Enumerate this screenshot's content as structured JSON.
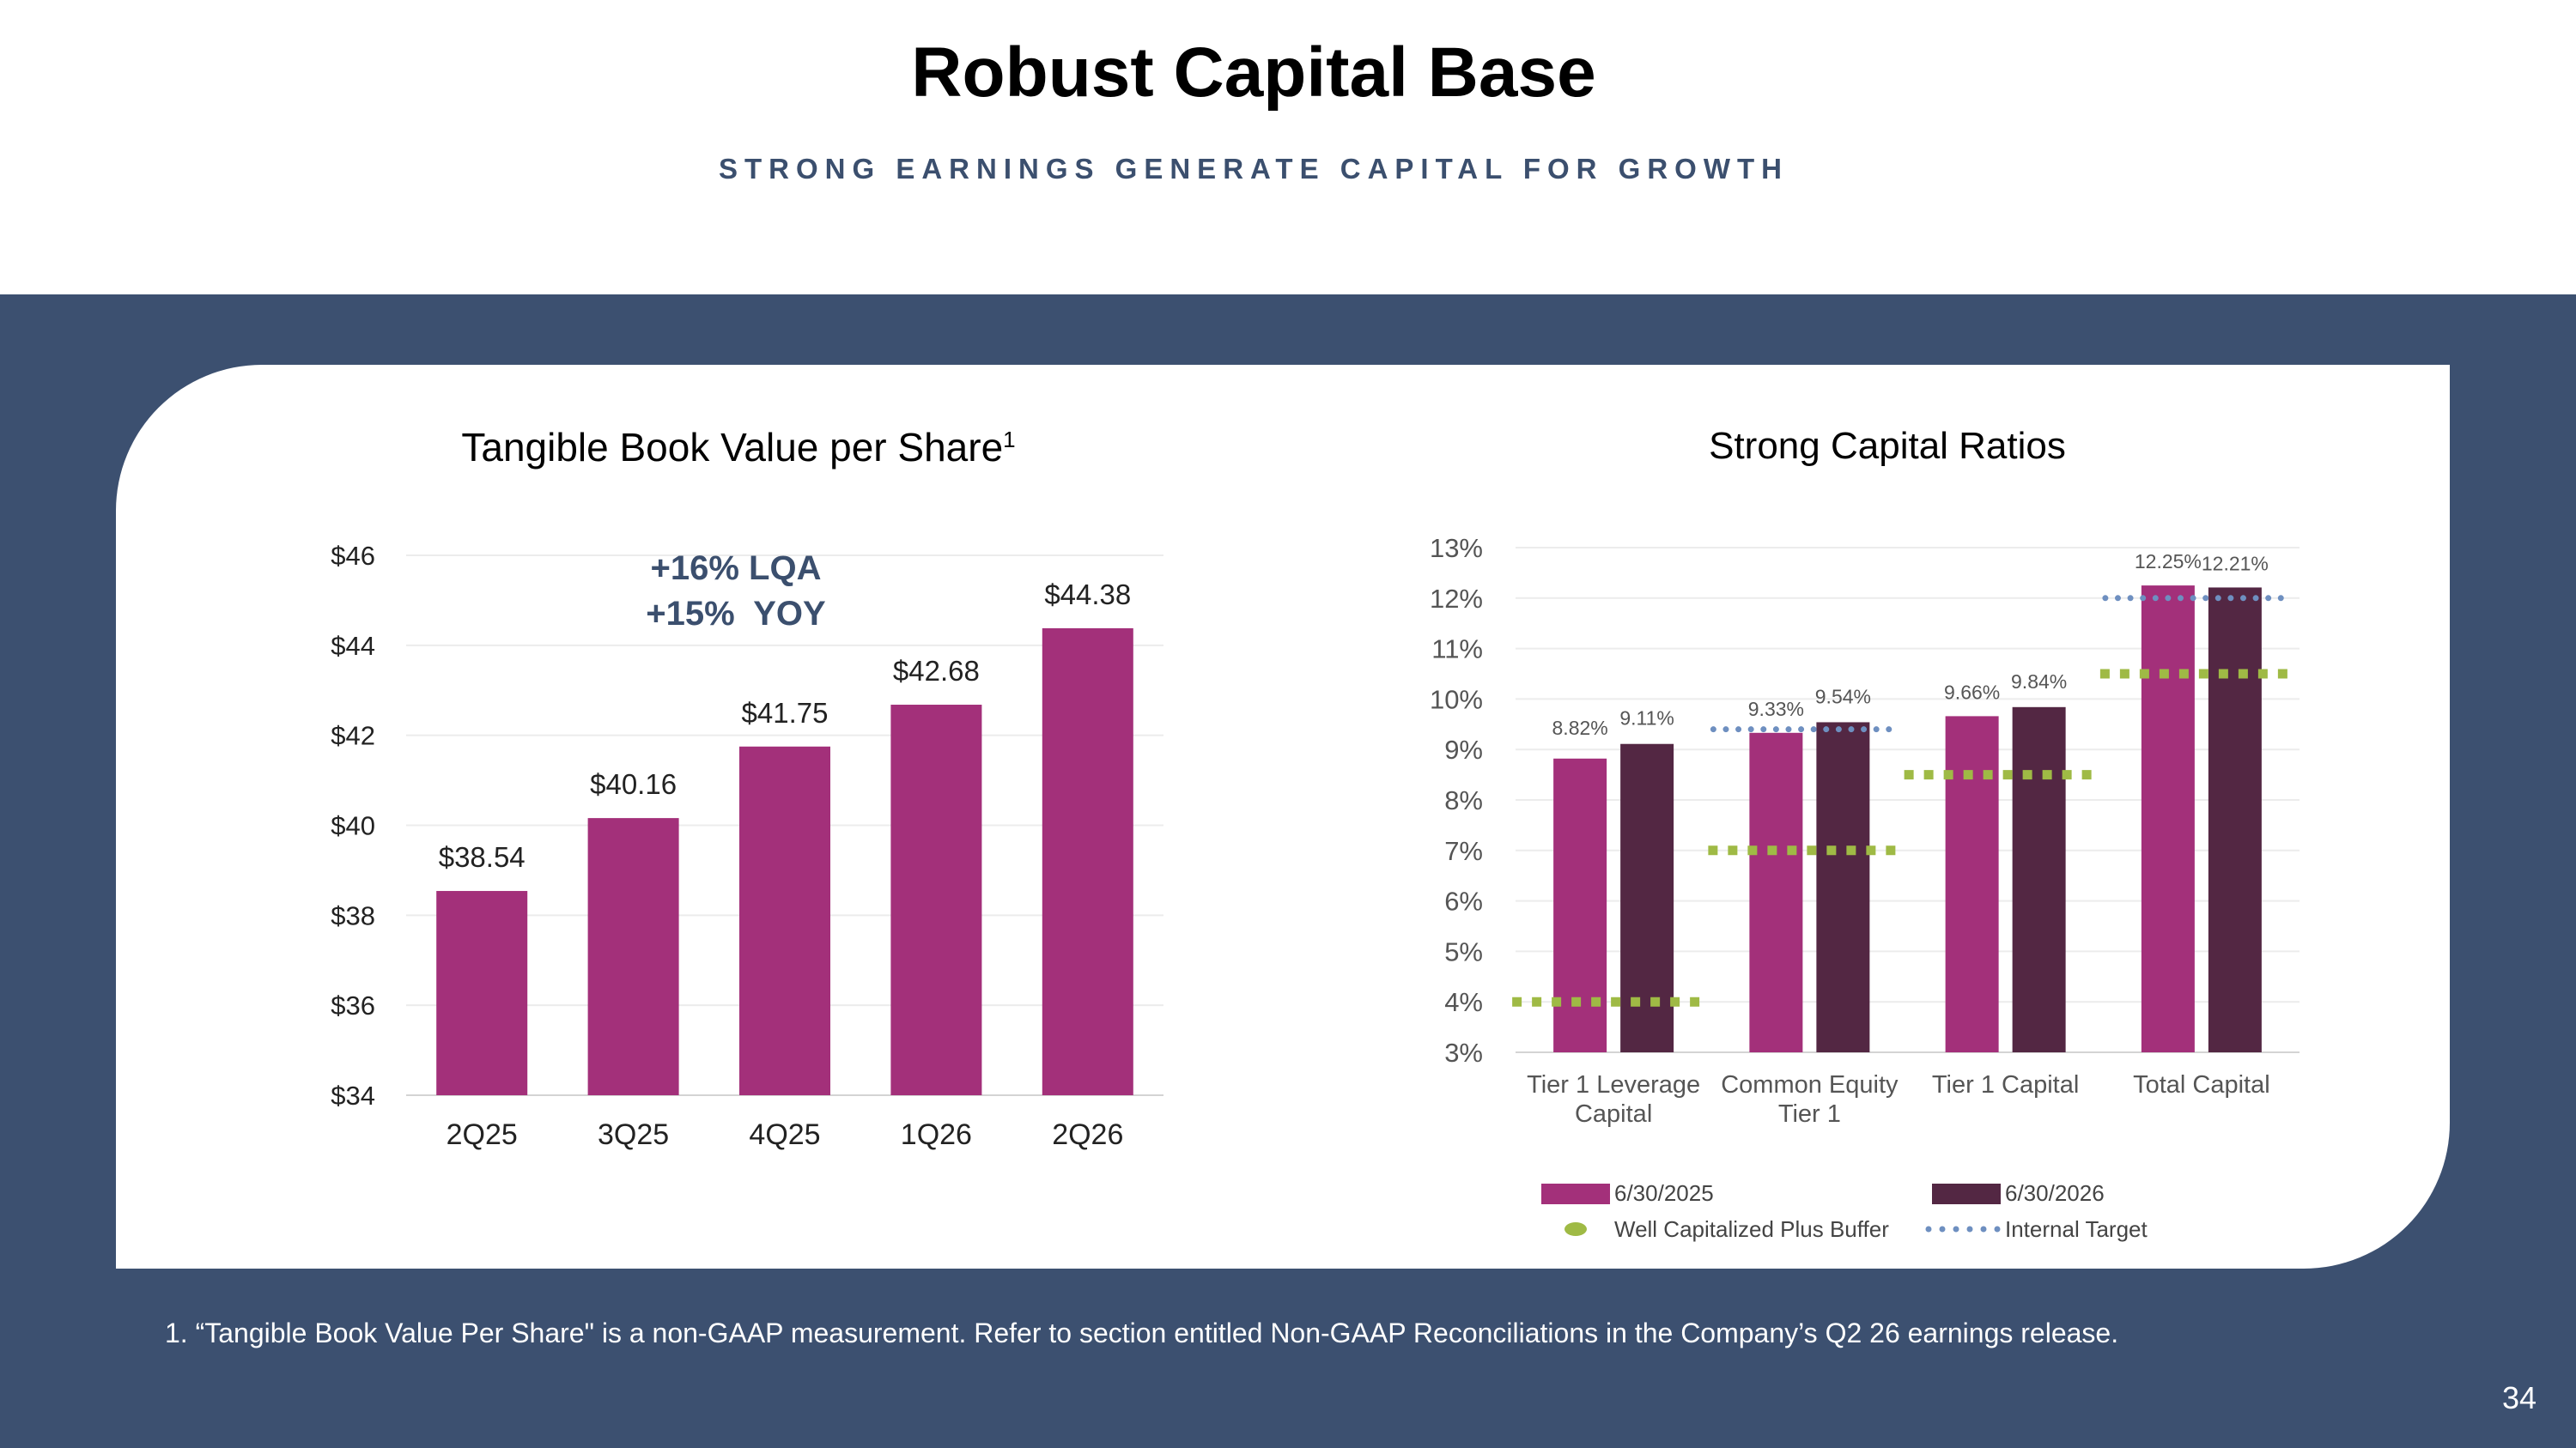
{
  "header": {
    "title": "Robust Capital Base",
    "subtitle": "STRONG EARNINGS GENERATE CAPITAL FOR GROWTH"
  },
  "footnote": "1. “Tangible Book Value Per Share\" is a non-GAAP measurement. Refer to section entitled Non-GAAP Reconciliations in the Company’s Q2 26 earnings release.",
  "page_number": "34",
  "colors": {
    "band": "#3c5070",
    "bar_primary": "#a3307a",
    "bar_secondary": "#532743",
    "well_capitalized": "#9fba45",
    "internal_target": "#6e8fc0",
    "callout": "#3b4f6e"
  },
  "chart_data": [
    {
      "type": "bar",
      "title": "Tangible Book Value per Share",
      "title_superscript": "1",
      "categories": [
        "2Q25",
        "3Q25",
        "4Q25",
        "1Q26",
        "2Q26"
      ],
      "values": [
        38.54,
        40.16,
        41.75,
        42.68,
        44.38
      ],
      "value_labels": [
        "$38.54",
        "$40.16",
        "$41.75",
        "$42.68",
        "$44.38"
      ],
      "ylim": [
        34,
        46
      ],
      "yticks": [
        "$34",
        "$36",
        "$38",
        "$40",
        "$42",
        "$44",
        "$46"
      ],
      "grid": true,
      "annotations": [
        "+16% LQA",
        "+15%  YOY"
      ]
    },
    {
      "type": "bar",
      "title": "Strong Capital Ratios",
      "categories": [
        [
          "Tier 1 Leverage",
          "Capital"
        ],
        [
          "Common Equity",
          "Tier 1"
        ],
        [
          "Tier 1 Capital"
        ],
        [
          "Total Capital"
        ]
      ],
      "series": [
        {
          "name": "6/30/2025",
          "values": [
            8.82,
            9.33,
            9.66,
            12.25
          ],
          "labels": [
            "8.82%",
            "9.33%",
            "9.66%",
            "12.25%"
          ]
        },
        {
          "name": "6/30/2026",
          "values": [
            9.11,
            9.54,
            9.84,
            12.21
          ],
          "labels": [
            "9.11%",
            "9.54%",
            "9.84%",
            "12.21%"
          ]
        }
      ],
      "reference_lines": [
        {
          "name": "Well Capitalized Plus Buffer",
          "style": "dashed-square",
          "values": [
            4.0,
            7.0,
            8.5,
            10.5
          ]
        },
        {
          "name": "Internal Target",
          "style": "dotted",
          "values": [
            9.4,
            12.0
          ]
        }
      ],
      "ylim": [
        3,
        13
      ],
      "yticks": [
        "3%",
        "4%",
        "5%",
        "6%",
        "7%",
        "8%",
        "9%",
        "10%",
        "11%",
        "12%",
        "13%"
      ],
      "grid": true,
      "legend_position": "bottom"
    }
  ]
}
